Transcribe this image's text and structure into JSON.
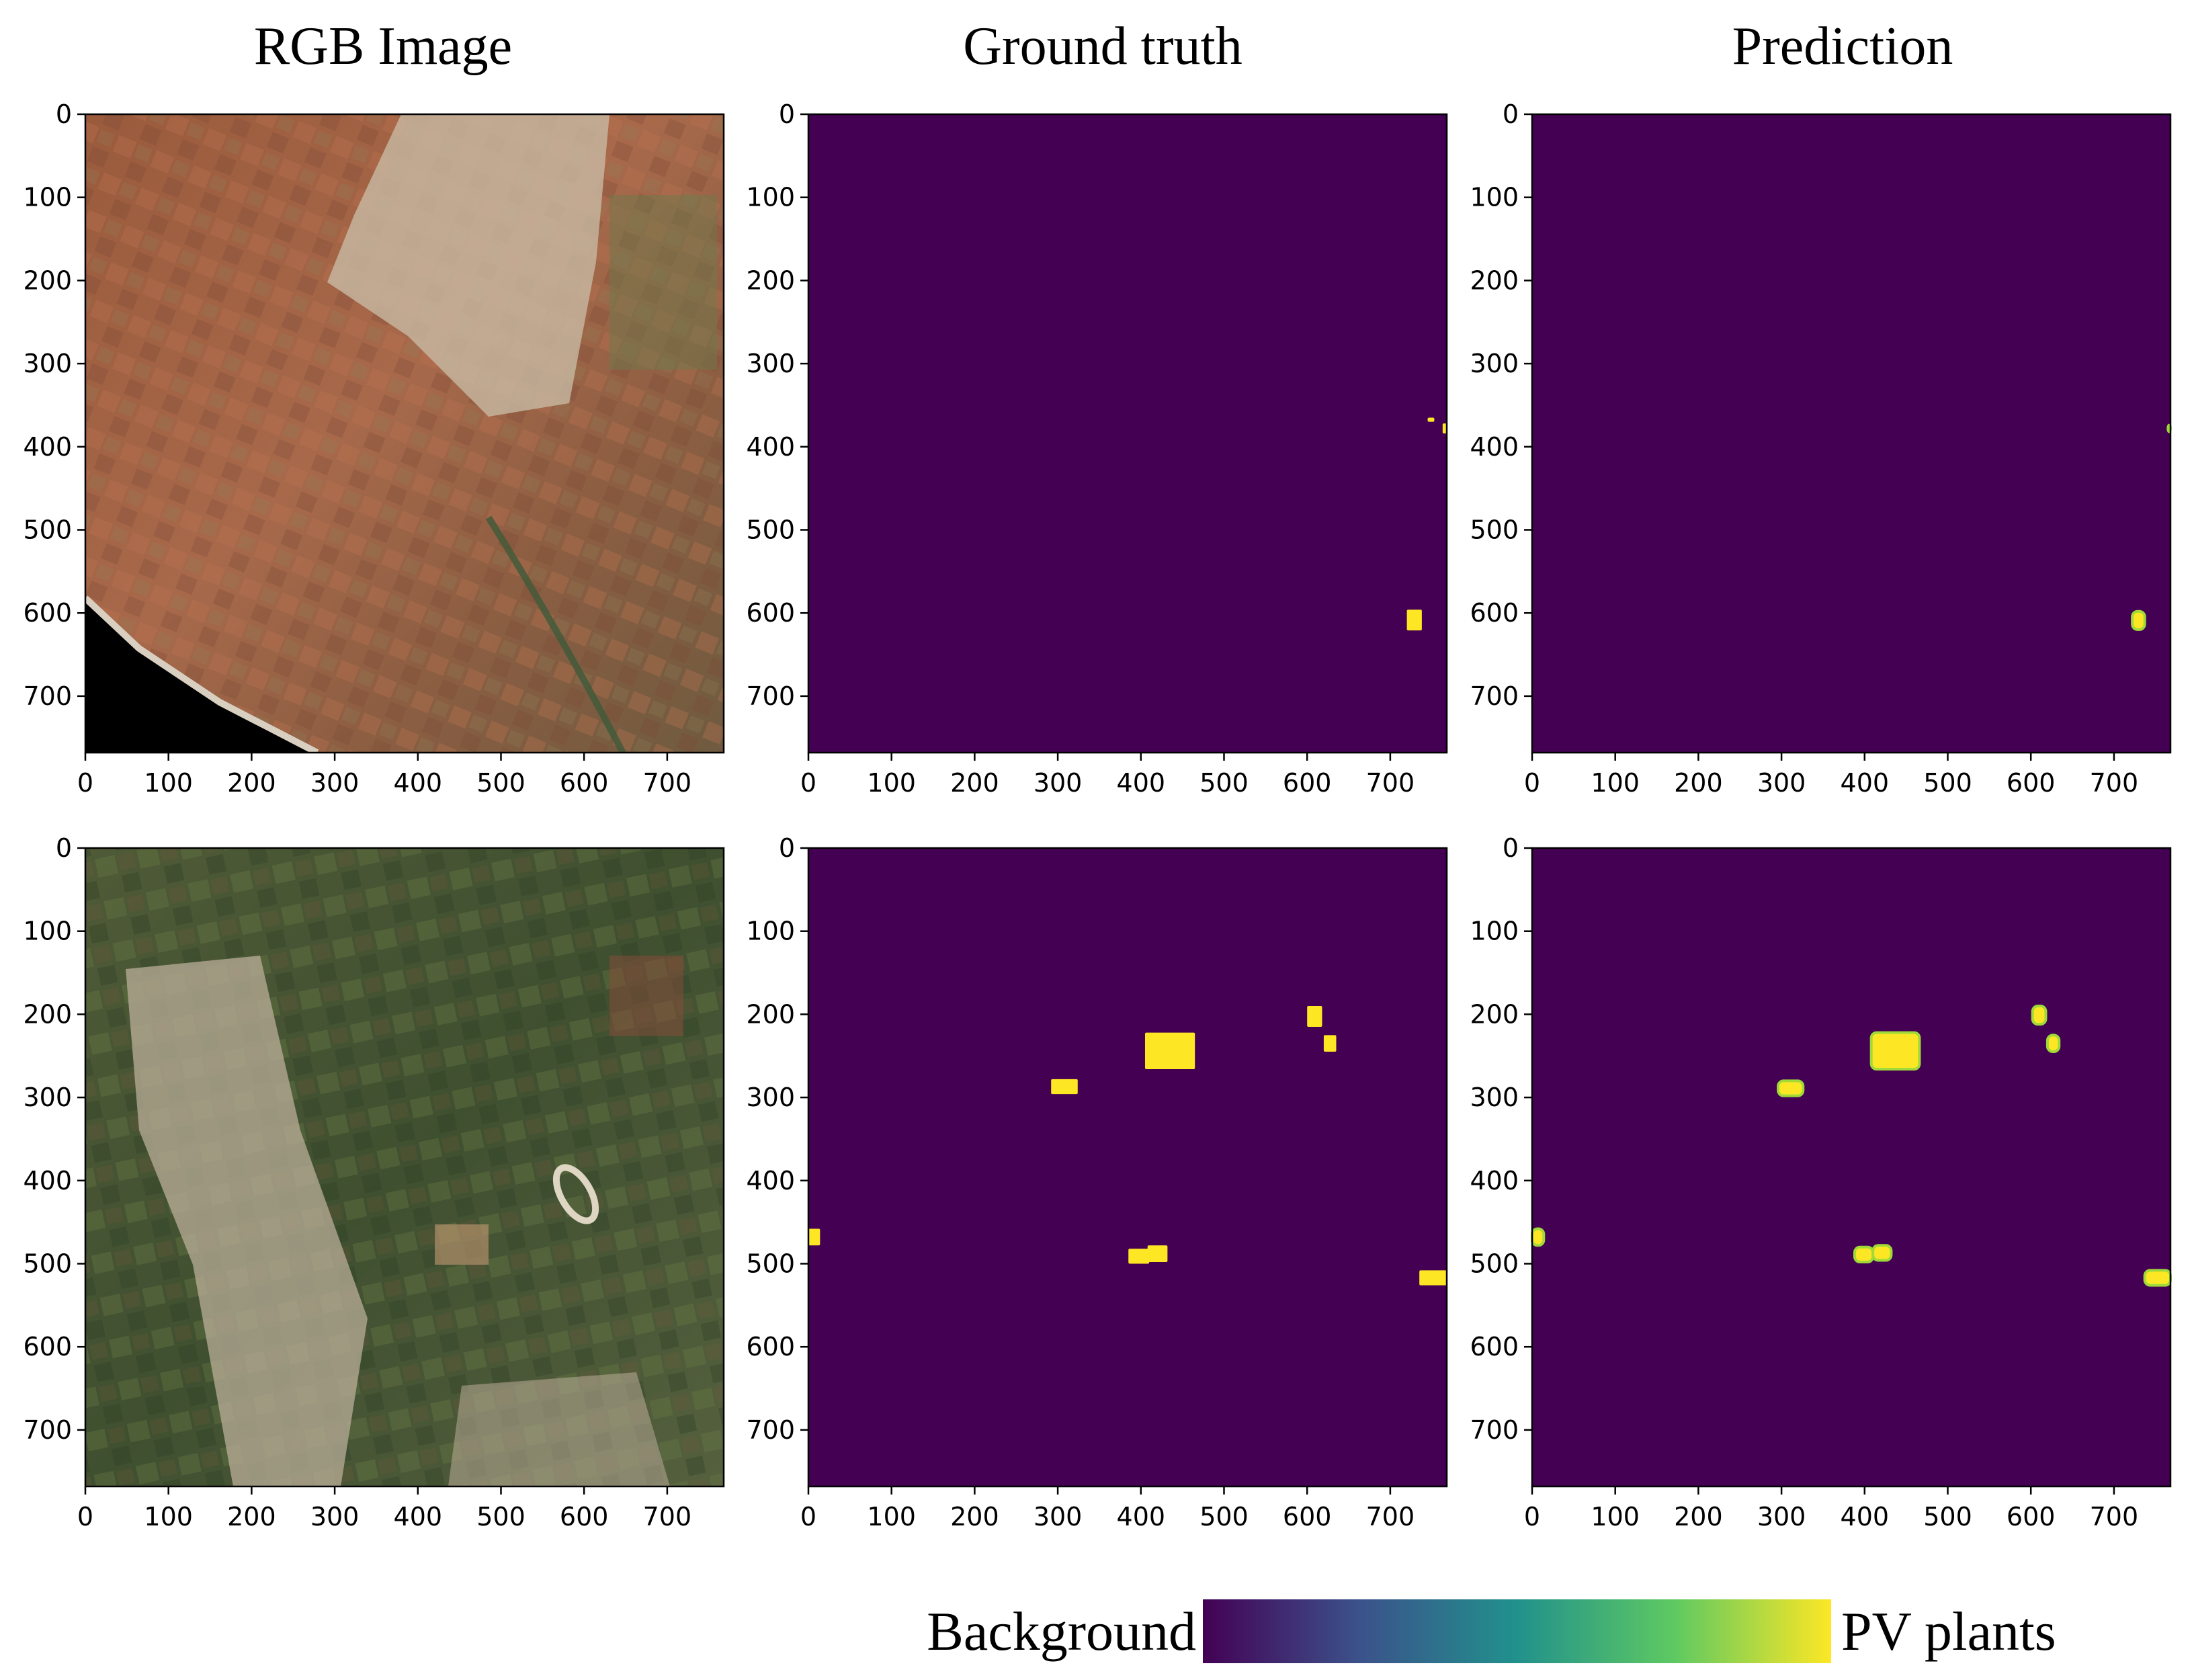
{
  "column_titles": [
    "RGB Image",
    "Ground truth",
    "Prediction"
  ],
  "colors": {
    "background_class": "#440154",
    "pv_class": "#fde725",
    "pv_edge_prediction": "#a0da39",
    "colormap": [
      "#440154",
      "#3b528b",
      "#21918c",
      "#5ec962",
      "#fde725"
    ]
  },
  "colorbar": {
    "left_label": "Background",
    "right_label": "PV plants"
  },
  "chart_data": {
    "type": "heatmap",
    "axis": {
      "xlim": [
        0,
        768
      ],
      "ylim": [
        768,
        0
      ],
      "xticks": [
        0,
        100,
        200,
        300,
        400,
        500,
        600,
        700
      ],
      "yticks": [
        0,
        100,
        200,
        300,
        400,
        500,
        600,
        700
      ]
    },
    "rows": [
      {
        "rgb_scene": "agricultural fields with town and coastline",
        "ground_truth_regions": [
          {
            "x": 745,
            "y": 365,
            "w": 8,
            "h": 5
          },
          {
            "x": 763,
            "y": 372,
            "w": 5,
            "h": 12
          },
          {
            "x": 720,
            "y": 596,
            "w": 18,
            "h": 25
          }
        ],
        "prediction_regions": [
          {
            "x": 765,
            "y": 374,
            "w": 3,
            "h": 8
          },
          {
            "x": 722,
            "y": 598,
            "w": 15,
            "h": 22
          }
        ]
      },
      {
        "rgb_scene": "town with vegetated fields and racetrack",
        "ground_truth_regions": [
          {
            "x": 0,
            "y": 458,
            "w": 14,
            "h": 20
          },
          {
            "x": 292,
            "y": 278,
            "w": 32,
            "h": 18
          },
          {
            "x": 405,
            "y": 222,
            "w": 60,
            "h": 44
          },
          {
            "x": 600,
            "y": 190,
            "w": 18,
            "h": 25
          },
          {
            "x": 620,
            "y": 225,
            "w": 15,
            "h": 20
          },
          {
            "x": 385,
            "y": 482,
            "w": 25,
            "h": 18
          },
          {
            "x": 408,
            "y": 478,
            "w": 24,
            "h": 20
          },
          {
            "x": 735,
            "y": 508,
            "w": 33,
            "h": 18
          }
        ],
        "prediction_regions": [
          {
            "x": 0,
            "y": 458,
            "w": 14,
            "h": 20
          },
          {
            "x": 296,
            "y": 280,
            "w": 30,
            "h": 18
          },
          {
            "x": 408,
            "y": 222,
            "w": 58,
            "h": 44
          },
          {
            "x": 602,
            "y": 190,
            "w": 16,
            "h": 22
          },
          {
            "x": 620,
            "y": 225,
            "w": 14,
            "h": 20
          },
          {
            "x": 388,
            "y": 480,
            "w": 22,
            "h": 18
          },
          {
            "x": 410,
            "y": 478,
            "w": 22,
            "h": 18
          },
          {
            "x": 737,
            "y": 508,
            "w": 31,
            "h": 18
          }
        ]
      }
    ]
  }
}
